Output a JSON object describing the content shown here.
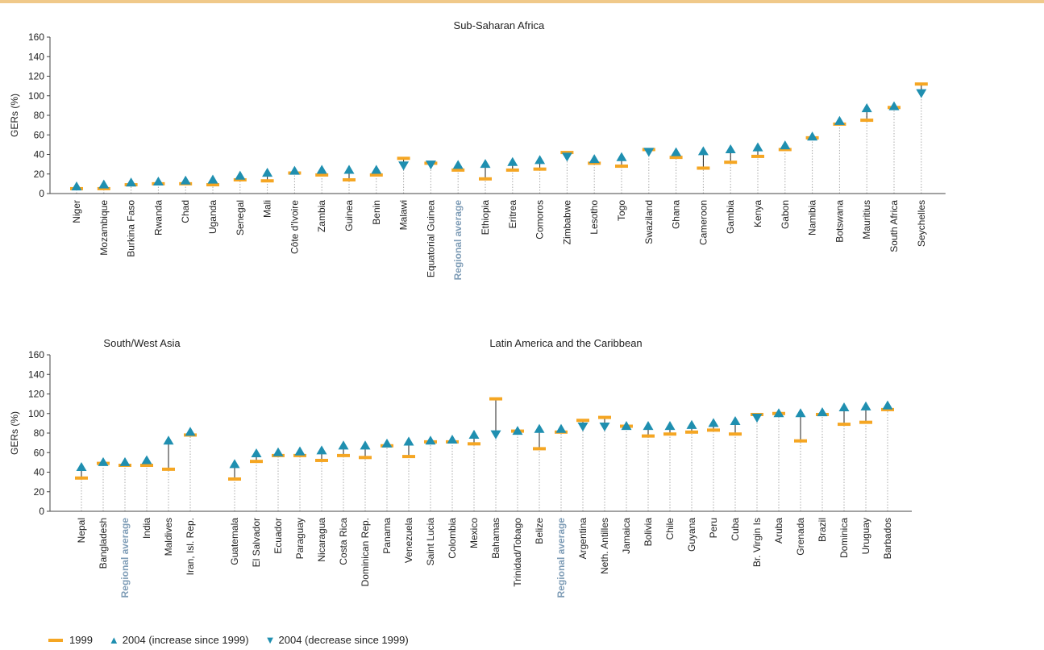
{
  "colors": {
    "marker_1999": "#f5a623",
    "marker_2004": "#1f8fb0",
    "stem": "#222222",
    "dotted": "#aaaaaa",
    "axis": "#444444",
    "avg_label": "#7e9cb6",
    "top_bar": "#f0c98a"
  },
  "legend": {
    "items": [
      {
        "label": "1999",
        "symbol": "dash",
        "icon": "orange-dash-icon"
      },
      {
        "label": "2004 (increase since 1999)",
        "symbol": "triangle-up",
        "icon": "triangle-up-icon"
      },
      {
        "label": "2004 (decrease since 1999)",
        "symbol": "triangle-down",
        "icon": "triangle-down-icon"
      }
    ]
  },
  "chart_data": [
    {
      "type": "scatter",
      "panel": "top",
      "ylabel": "GERs (%)",
      "ylim": [
        0,
        160
      ],
      "yticks": [
        0,
        20,
        40,
        60,
        80,
        100,
        120,
        140,
        160
      ],
      "groups": [
        {
          "title": "Sub-Saharan Africa",
          "points": [
            {
              "name": "Niger",
              "v1999": 5,
              "v2004": 7
            },
            {
              "name": "Mozambique",
              "v1999": 5,
              "v2004": 9
            },
            {
              "name": "Burkina Faso",
              "v1999": 9,
              "v2004": 11
            },
            {
              "name": "Rwanda",
              "v1999": 10,
              "v2004": 12
            },
            {
              "name": "Chad",
              "v1999": 10,
              "v2004": 13
            },
            {
              "name": "Uganda",
              "v1999": 9,
              "v2004": 14
            },
            {
              "name": "Senegal",
              "v1999": 14,
              "v2004": 18
            },
            {
              "name": "Mali",
              "v1999": 13,
              "v2004": 21
            },
            {
              "name": "Côte d'Ivoire",
              "v1999": 21,
              "v2004": 23
            },
            {
              "name": "Zambia",
              "v1999": 19,
              "v2004": 24
            },
            {
              "name": "Guinea",
              "v1999": 14,
              "v2004": 24
            },
            {
              "name": "Benin",
              "v1999": 19,
              "v2004": 24
            },
            {
              "name": "Malawi",
              "v1999": 36,
              "v2004": 29
            },
            {
              "name": "Equatorial Guinea",
              "v1999": 31,
              "v2004": 30
            },
            {
              "name": "Regional average",
              "v1999": 24,
              "v2004": 29,
              "average": true
            },
            {
              "name": "Ethiopia",
              "v1999": 15,
              "v2004": 30
            },
            {
              "name": "Eritrea",
              "v1999": 24,
              "v2004": 32
            },
            {
              "name": "Comoros",
              "v1999": 25,
              "v2004": 34
            },
            {
              "name": "Zimbabwe",
              "v1999": 42,
              "v2004": 38
            },
            {
              "name": "Lesotho",
              "v1999": 31,
              "v2004": 35
            },
            {
              "name": "Togo",
              "v1999": 28,
              "v2004": 37
            },
            {
              "name": "Swaziland",
              "v1999": 45,
              "v2004": 43
            },
            {
              "name": "Ghana",
              "v1999": 37,
              "v2004": 42
            },
            {
              "name": "Cameroon",
              "v1999": 26,
              "v2004": 43
            },
            {
              "name": "Gambia",
              "v1999": 32,
              "v2004": 45
            },
            {
              "name": "Kenya",
              "v1999": 38,
              "v2004": 47
            },
            {
              "name": "Gabon",
              "v1999": 45,
              "v2004": 49
            },
            {
              "name": "Namibia",
              "v1999": 57,
              "v2004": 58
            },
            {
              "name": "Botswana",
              "v1999": 71,
              "v2004": 74
            },
            {
              "name": "Mauritius",
              "v1999": 75,
              "v2004": 87
            },
            {
              "name": "South Africa",
              "v1999": 88,
              "v2004": 89
            },
            {
              "name": "Seychelles",
              "v1999": 112,
              "v2004": 103
            }
          ]
        }
      ]
    },
    {
      "type": "scatter",
      "panel": "bottom",
      "ylabel": "GERs (%)",
      "ylim": [
        0,
        160
      ],
      "yticks": [
        0,
        20,
        40,
        60,
        80,
        100,
        120,
        140,
        160
      ],
      "groups": [
        {
          "title": "South/West Asia",
          "points": [
            {
              "name": "Nepal",
              "v1999": 34,
              "v2004": 45
            },
            {
              "name": "Bangladesh",
              "v1999": 49,
              "v2004": 50
            },
            {
              "name": "Regional average",
              "v1999": 47,
              "v2004": 50,
              "average": true
            },
            {
              "name": "India",
              "v1999": 47,
              "v2004": 52
            },
            {
              "name": "Maldives",
              "v1999": 43,
              "v2004": 72
            },
            {
              "name": "Iran, Isl. Rep.",
              "v1999": 78,
              "v2004": 81
            }
          ]
        },
        {
          "title": "Latin America and the Caribbean",
          "points": [
            {
              "name": "Guatemala",
              "v1999": 33,
              "v2004": 48
            },
            {
              "name": "El Salvador",
              "v1999": 51,
              "v2004": 59
            },
            {
              "name": "Ecuador",
              "v1999": 57,
              "v2004": 60
            },
            {
              "name": "Paraguay",
              "v1999": 57,
              "v2004": 61
            },
            {
              "name": "Nicaragua",
              "v1999": 52,
              "v2004": 62
            },
            {
              "name": "Costa Rica",
              "v1999": 57,
              "v2004": 67
            },
            {
              "name": "Dominican Rep.",
              "v1999": 55,
              "v2004": 67
            },
            {
              "name": "Panama",
              "v1999": 67,
              "v2004": 69
            },
            {
              "name": "Venezuela",
              "v1999": 56,
              "v2004": 71
            },
            {
              "name": "Saint Lucia",
              "v1999": 71,
              "v2004": 72
            },
            {
              "name": "Colombia",
              "v1999": 71,
              "v2004": 73
            },
            {
              "name": "Mexico",
              "v1999": 69,
              "v2004": 78
            },
            {
              "name": "Bahamas",
              "v1999": 115,
              "v2004": 79
            },
            {
              "name": "Trinidad/Tobago",
              "v1999": 82,
              "v2004": 82
            },
            {
              "name": "Belize",
              "v1999": 64,
              "v2004": 84
            },
            {
              "name": "Regional average",
              "v1999": 81,
              "v2004": 84,
              "average": true
            },
            {
              "name": "Argentina",
              "v1999": 93,
              "v2004": 87
            },
            {
              "name": "Neth. Antilles",
              "v1999": 96,
              "v2004": 87
            },
            {
              "name": "Jamaica",
              "v1999": 87,
              "v2004": 87
            },
            {
              "name": "Bolivia",
              "v1999": 77,
              "v2004": 87
            },
            {
              "name": "Chile",
              "v1999": 79,
              "v2004": 87
            },
            {
              "name": "Guyana",
              "v1999": 81,
              "v2004": 88
            },
            {
              "name": "Peru",
              "v1999": 83,
              "v2004": 90
            },
            {
              "name": "Cuba",
              "v1999": 79,
              "v2004": 92
            },
            {
              "name": "Br. Virgin Is",
              "v1999": 99,
              "v2004": 96
            },
            {
              "name": "Aruba",
              "v1999": 100,
              "v2004": 100
            },
            {
              "name": "Grenada",
              "v1999": 72,
              "v2004": 100
            },
            {
              "name": "Brazil",
              "v1999": 99,
              "v2004": 101
            },
            {
              "name": "Dominica",
              "v1999": 89,
              "v2004": 106
            },
            {
              "name": "Uruguay",
              "v1999": 91,
              "v2004": 107
            },
            {
              "name": "Barbados",
              "v1999": 104,
              "v2004": 108
            }
          ]
        }
      ]
    }
  ]
}
